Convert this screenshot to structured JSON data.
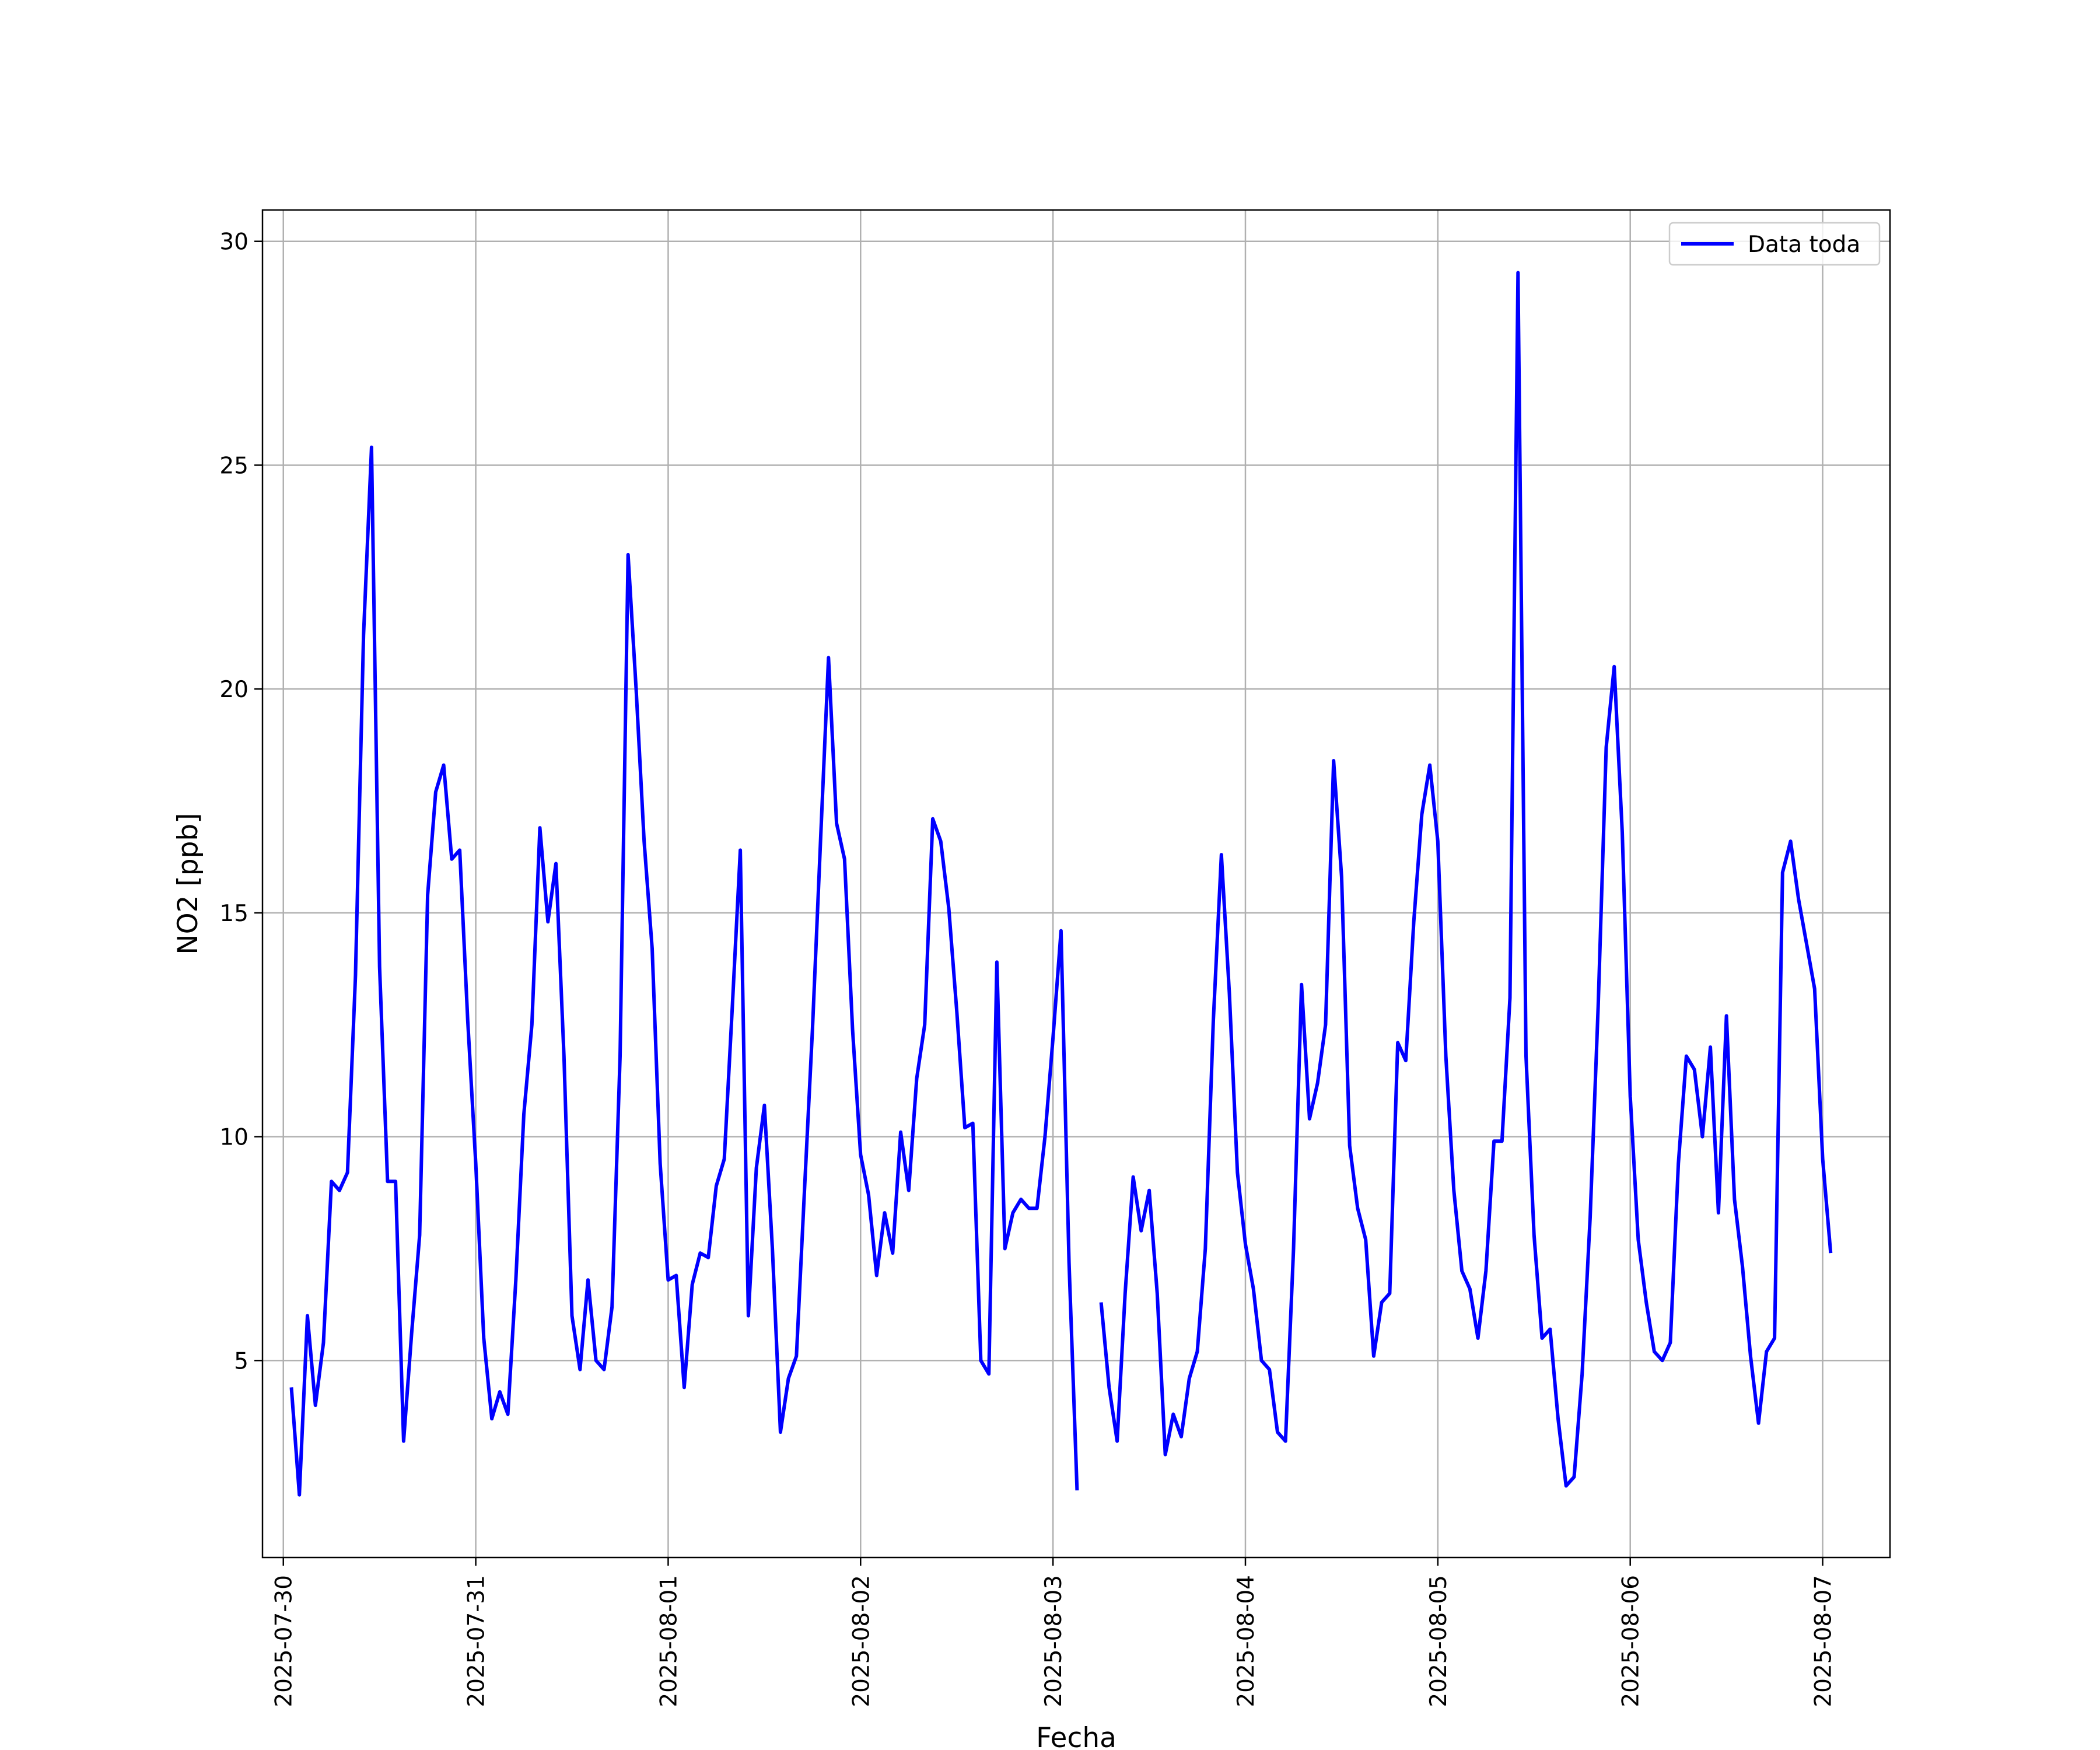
{
  "chart_data": {
    "type": "line",
    "xlabel": "Fecha",
    "ylabel": "NO2 [ppb]",
    "ylim": [
      0.6,
      30.7
    ],
    "xlim": [
      "2025-07-29T21:24",
      "2025-08-07T08:24"
    ],
    "yticks": [
      5,
      10,
      15,
      20,
      25,
      30
    ],
    "xticks": [
      "2025-07-30",
      "2025-07-31",
      "2025-08-01",
      "2025-08-02",
      "2025-08-03",
      "2025-08-04",
      "2025-08-05",
      "2025-08-06",
      "2025-08-07"
    ],
    "grid": true,
    "legend_position": "top-right",
    "series": [
      {
        "name": "Data toda",
        "color": "#0000ff",
        "start": "2025-07-30T01:00",
        "interval_hours": 1,
        "values": [
          4.4,
          2.0,
          6.0,
          4.0,
          5.4,
          9.0,
          8.8,
          9.2,
          13.6,
          21.2,
          25.4,
          13.8,
          9.0,
          9.0,
          3.2,
          5.6,
          7.8,
          15.4,
          17.7,
          18.3,
          16.2,
          16.4,
          12.6,
          9.4,
          5.5,
          3.7,
          4.3,
          3.8,
          6.8,
          10.5,
          12.5,
          16.9,
          14.8,
          16.1,
          11.8,
          6.0,
          4.8,
          6.8,
          5.0,
          4.8,
          6.2,
          11.8,
          23.0,
          20.0,
          16.6,
          14.2,
          9.4,
          6.8,
          6.9,
          4.4,
          6.7,
          7.4,
          7.3,
          8.9,
          9.5,
          12.9,
          16.4,
          6.0,
          9.3,
          10.7,
          7.5,
          3.4,
          4.6,
          5.1,
          8.8,
          12.4,
          16.6,
          20.7,
          17.0,
          16.2,
          12.4,
          9.6,
          8.7,
          6.9,
          8.3,
          7.4,
          10.1,
          8.8,
          11.3,
          12.5,
          17.1,
          16.6,
          15.1,
          12.8,
          10.2,
          10.3,
          5.0,
          4.7,
          13.9,
          7.5,
          8.3,
          8.6,
          8.4,
          8.4,
          10.0,
          12.2,
          14.6,
          7.2,
          2.1,
          null,
          null,
          6.3,
          4.4,
          3.2,
          6.5,
          9.1,
          7.9,
          8.8,
          6.5,
          2.9,
          3.8,
          3.3,
          4.6,
          5.2,
          7.5,
          12.6,
          16.3,
          13.2,
          9.2,
          7.6,
          6.6,
          5.0,
          4.8,
          3.4,
          3.2,
          7.5,
          13.4,
          10.4,
          11.2,
          12.5,
          18.4,
          15.8,
          9.8,
          8.4,
          7.7,
          5.1,
          6.3,
          6.5,
          12.1,
          11.7,
          14.8,
          17.2,
          18.3,
          16.6,
          11.8,
          8.8,
          7.0,
          6.6,
          5.5,
          7.0,
          9.9,
          9.9,
          13.1,
          29.3,
          11.8,
          7.8,
          5.5,
          5.7,
          3.7,
          2.2,
          2.4,
          4.7,
          8.2,
          12.9,
          18.7,
          20.5,
          16.8,
          10.9,
          7.7,
          6.3,
          5.2,
          5.0,
          5.4,
          9.4,
          11.8,
          11.5,
          10.0,
          12.0,
          8.3,
          12.7,
          8.6,
          7.1,
          5.1,
          3.6,
          5.2,
          5.5,
          15.9,
          16.6,
          15.3,
          14.3,
          13.3,
          9.5,
          7.4
        ]
      }
    ]
  }
}
